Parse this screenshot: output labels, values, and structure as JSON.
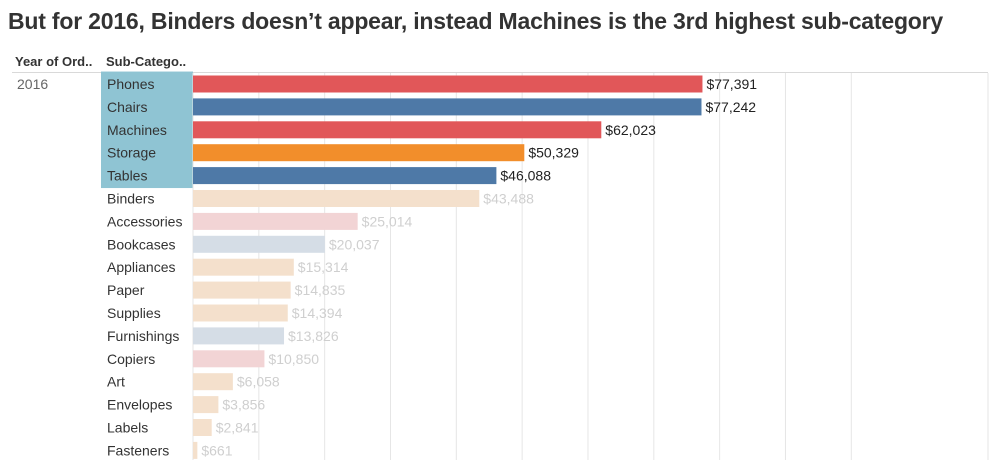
{
  "title": "But for 2016, Binders doesn’t appear, instead Machines is the 3rd highest sub-category",
  "header": {
    "col_year": "Year of Ord..",
    "col_subcat": "Sub-Catego.."
  },
  "year": "2016",
  "colors": {
    "highlight_bg": "#8fc4d3",
    "grid": "#e6e6e6"
  },
  "chart_data": {
    "type": "bar",
    "orientation": "horizontal",
    "title": "But for 2016, Binders doesn’t appear, instead Machines is the 3rd highest sub-category",
    "xlim": [
      0,
      100000
    ],
    "grid": true,
    "categories": [
      "Phones",
      "Chairs",
      "Machines",
      "Storage",
      "Tables",
      "Binders",
      "Accessories",
      "Bookcases",
      "Appliances",
      "Paper",
      "Supplies",
      "Furnishings",
      "Copiers",
      "Art",
      "Envelopes",
      "Labels",
      "Fasteners"
    ],
    "values": [
      77391,
      77242,
      62023,
      50329,
      46088,
      43488,
      25014,
      20037,
      15314,
      14835,
      14394,
      13826,
      10850,
      6058,
      3856,
      2841,
      661
    ],
    "labels": [
      "$77,391",
      "$77,242",
      "$62,023",
      "$50,329",
      "$46,088",
      "$43,488",
      "$25,014",
      "$20,037",
      "$15,314",
      "$14,835",
      "$14,394",
      "$13,826",
      "$10,850",
      "$6,058",
      "$3,856",
      "$2,841",
      "$661"
    ],
    "highlighted": [
      true,
      true,
      true,
      true,
      true,
      false,
      false,
      false,
      false,
      false,
      false,
      false,
      false,
      false,
      false,
      false,
      false
    ],
    "colors": [
      "#e15759",
      "#4e79a7",
      "#e15759",
      "#f28e2b",
      "#4e79a7",
      "#f4e0cc",
      "#f2d4d5",
      "#d5dde6",
      "#f4e0cc",
      "#f4e0cc",
      "#f4e0cc",
      "#d5dde6",
      "#f2d4d5",
      "#f4e0cc",
      "#f4e0cc",
      "#f4e0cc",
      "#f4e0cc"
    ]
  }
}
